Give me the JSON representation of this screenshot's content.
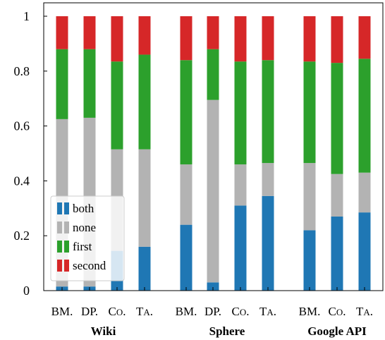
{
  "chart_data": {
    "type": "bar",
    "stacked": true,
    "ylim": [
      0,
      1
    ],
    "yticks": [
      "0",
      "0.2",
      "0.4",
      "0.6",
      "0.8",
      "1"
    ],
    "grid": false,
    "legend_position": "bottom-left",
    "groups": [
      {
        "name": "Wiki",
        "bars": [
          {
            "label": "BM.",
            "values": [
              0.015,
              0.61,
              0.255,
              0.12
            ]
          },
          {
            "label": "DP.",
            "values": [
              0.015,
              0.615,
              0.25,
              0.12
            ]
          },
          {
            "label": "CO.",
            "values": [
              0.145,
              0.37,
              0.32,
              0.165
            ]
          },
          {
            "label": "TA.",
            "values": [
              0.16,
              0.355,
              0.345,
              0.14
            ]
          }
        ]
      },
      {
        "name": "Sphere",
        "bars": [
          {
            "label": "BM.",
            "values": [
              0.24,
              0.22,
              0.38,
              0.16
            ]
          },
          {
            "label": "DP.",
            "values": [
              0.03,
              0.665,
              0.185,
              0.12
            ]
          },
          {
            "label": "CO.",
            "values": [
              0.31,
              0.15,
              0.375,
              0.165
            ]
          },
          {
            "label": "TA.",
            "values": [
              0.345,
              0.12,
              0.375,
              0.16
            ]
          }
        ]
      },
      {
        "name": "Google API",
        "bars": [
          {
            "label": "BM.",
            "values": [
              0.22,
              0.245,
              0.37,
              0.165
            ]
          },
          {
            "label": "CO.",
            "values": [
              0.27,
              0.155,
              0.405,
              0.17
            ]
          },
          {
            "label": "TA.",
            "values": [
              0.285,
              0.145,
              0.415,
              0.155
            ]
          }
        ]
      }
    ],
    "series": [
      {
        "name": "both",
        "color": "#1f77b4"
      },
      {
        "name": "none",
        "color": "#b3b3b3"
      },
      {
        "name": "first",
        "color": "#2ca02c"
      },
      {
        "name": "second",
        "color": "#d62728"
      }
    ]
  }
}
